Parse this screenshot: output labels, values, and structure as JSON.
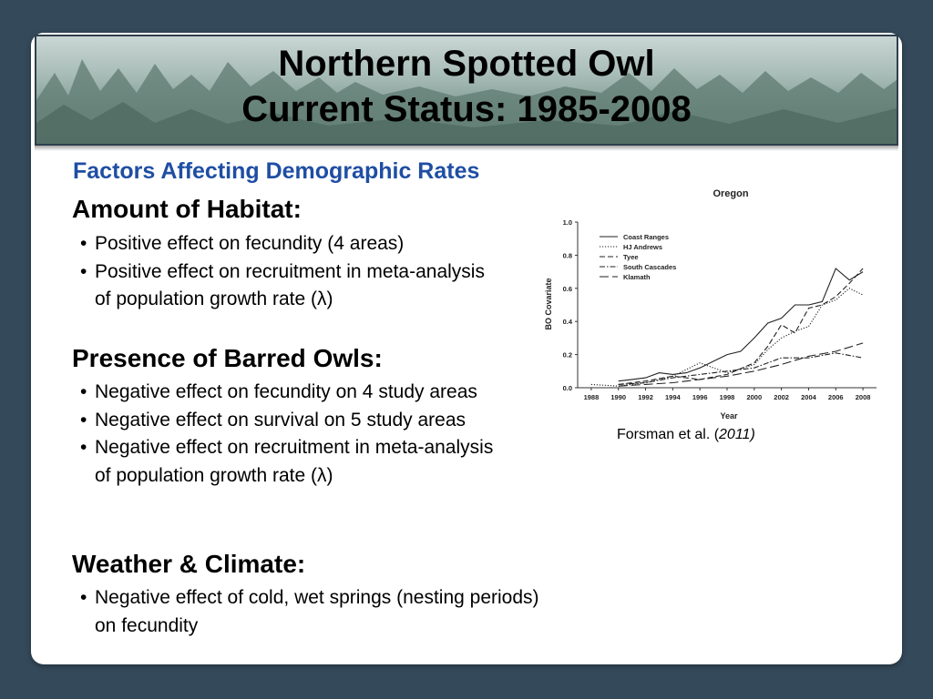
{
  "slide": {
    "title_line1": "Northern Spotted Owl",
    "title_line2": "Current Status: 1985-2008",
    "subtitle": "Factors Affecting Demographic Rates",
    "sections": [
      {
        "heading": "Amount of Habitat:",
        "bullets": [
          "Positive effect on fecundity (4 areas)",
          "Positive effect on recruitment in meta-analysis of population growth rate (λ)"
        ]
      },
      {
        "heading": "Presence of Barred Owls:",
        "bullets": [
          "Negative effect on fecundity on 4 study areas",
          "Negative effect on survival on 5 study areas",
          "Negative effect on recruitment in meta-analysis of population growth rate (λ)"
        ]
      },
      {
        "heading": "Weather & Climate:",
        "bullets": [
          "Negative effect of cold, wet springs (nesting periods) on fecundity"
        ]
      }
    ],
    "citation_text": "Forsman et al. (",
    "citation_year": "2011)",
    "bullet_char": "•",
    "colors": {
      "background": "#34495a",
      "subtitle": "#1f4ea3",
      "card": "#ffffff"
    }
  },
  "chart_data": {
    "type": "line",
    "title": "Oregon",
    "xlabel": "Year",
    "ylabel": "BO Covariate",
    "xlim": [
      1987,
      2009
    ],
    "ylim": [
      0.0,
      1.0
    ],
    "x_ticks": [
      "1988",
      "1990",
      "1992",
      "1994",
      "1996",
      "1998",
      "2000",
      "2002",
      "2004",
      "2006",
      "2008"
    ],
    "y_ticks": [
      "0.0",
      "0.2",
      "0.4",
      "0.6",
      "0.8",
      "1.0"
    ],
    "legend_position": "top-left",
    "series": [
      {
        "name": "Coast Ranges",
        "style": "solid",
        "x": [
          1990,
          1991,
          1992,
          1993,
          1994,
          1995,
          1996,
          1997,
          1998,
          1999,
          2000,
          2001,
          2002,
          2003,
          2004,
          2005,
          2006,
          2007,
          2008
        ],
        "y": [
          0.04,
          0.05,
          0.06,
          0.09,
          0.08,
          0.09,
          0.12,
          0.16,
          0.2,
          0.22,
          0.3,
          0.39,
          0.42,
          0.5,
          0.5,
          0.52,
          0.72,
          0.65,
          0.7
        ]
      },
      {
        "name": "HJ Andrews",
        "style": "dotted",
        "x": [
          1988,
          1990,
          1992,
          1994,
          1996,
          1998,
          2000,
          2001,
          2002,
          2003,
          2004,
          2005,
          2006,
          2007,
          2008
        ],
        "y": [
          0.02,
          0.01,
          0.03,
          0.07,
          0.15,
          0.09,
          0.14,
          0.23,
          0.3,
          0.34,
          0.37,
          0.5,
          0.53,
          0.6,
          0.56
        ]
      },
      {
        "name": "Tyee",
        "style": "dashed",
        "x": [
          1990,
          1992,
          1994,
          1996,
          1998,
          2000,
          2001,
          2002,
          2003,
          2004,
          2005,
          2006,
          2007,
          2008
        ],
        "y": [
          0.02,
          0.04,
          0.07,
          0.05,
          0.08,
          0.15,
          0.25,
          0.38,
          0.33,
          0.48,
          0.5,
          0.55,
          0.63,
          0.72
        ]
      },
      {
        "name": "South Cascades",
        "style": "dashdot",
        "x": [
          1990,
          1992,
          1994,
          1996,
          1998,
          2000,
          2002,
          2004,
          2006,
          2008
        ],
        "y": [
          0.02,
          0.03,
          0.06,
          0.08,
          0.1,
          0.12,
          0.18,
          0.18,
          0.21,
          0.18
        ]
      },
      {
        "name": "Klamath",
        "style": "longdash",
        "x": [
          1990,
          1992,
          1994,
          1996,
          1998,
          2000,
          2002,
          2004,
          2006,
          2008
        ],
        "y": [
          0.01,
          0.02,
          0.03,
          0.05,
          0.07,
          0.1,
          0.14,
          0.19,
          0.22,
          0.27
        ]
      }
    ]
  }
}
